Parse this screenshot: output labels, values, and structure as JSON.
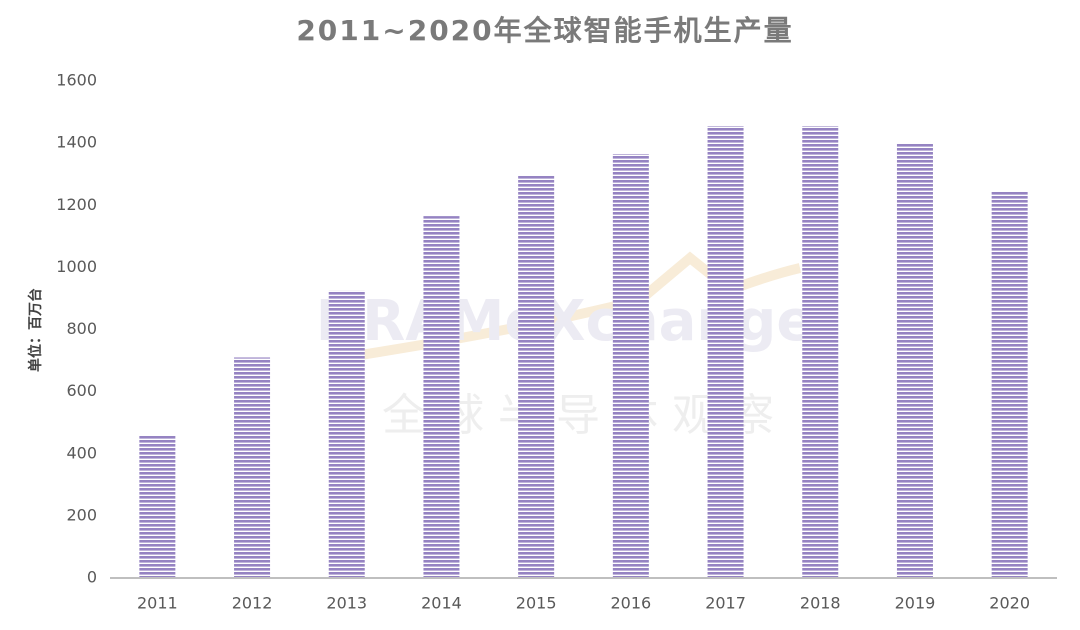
{
  "chart_data": {
    "type": "bar",
    "title": "2011~2020年全球智能手机生产量",
    "y_label": "单位：百万台",
    "watermark": [
      "DRAMeXchange",
      "全球半导体观察"
    ],
    "categories": [
      "2011",
      "2012",
      "2013",
      "2014",
      "2015",
      "2016",
      "2017",
      "2018",
      "2019",
      "2020"
    ],
    "values": [
      460,
      710,
      925,
      1165,
      1295,
      1365,
      1455,
      1455,
      1400,
      1245
    ],
    "color": "#9583c2",
    "ylim": [
      0,
      1600
    ],
    "yticks": [
      0,
      200,
      400,
      600,
      800,
      1000,
      1200,
      1400,
      1600
    ],
    "grid": false
  }
}
